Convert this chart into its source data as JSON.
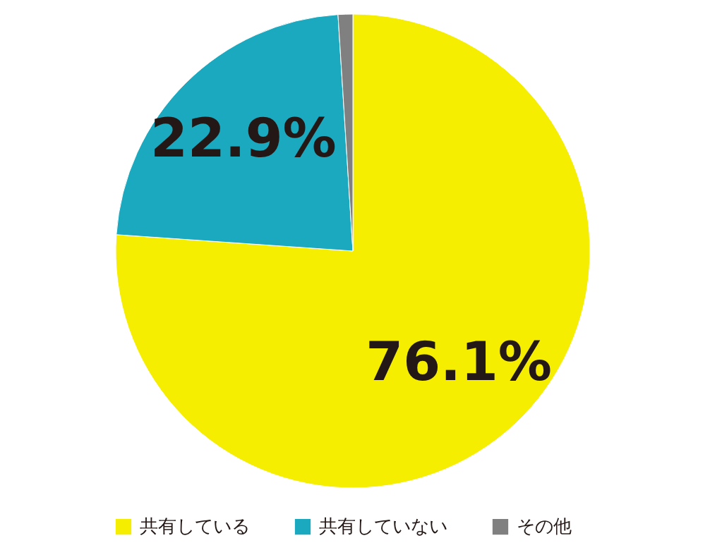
{
  "chart_data": {
    "type": "pie",
    "categories": [
      "共有している",
      "共有していない",
      "その他"
    ],
    "values": [
      76.1,
      22.9,
      1.0
    ],
    "colors": [
      "#f5ee00",
      "#1ba9c0",
      "#808080"
    ],
    "value_labels": [
      "76.1%",
      "22.9%",
      null
    ],
    "legend": "bottom"
  }
}
